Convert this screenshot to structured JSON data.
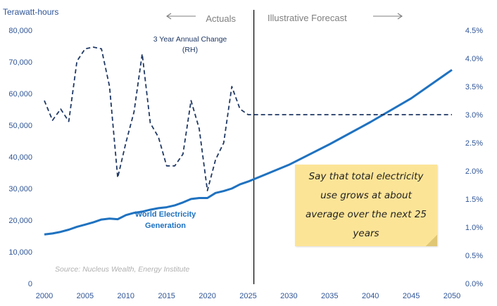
{
  "chart_data": {
    "type": "line",
    "y_axis_title": "Terawatt-hours",
    "ylim_left": [
      0,
      80000
    ],
    "yticks_left": [
      "0",
      "10,000",
      "20,000",
      "30,000",
      "40,000",
      "50,000",
      "60,000",
      "70,000",
      "80,000"
    ],
    "ylim_right": [
      0,
      4.5
    ],
    "yticks_right": [
      "0.0%",
      "0.5%",
      "1.0%",
      "1.5%",
      "2.0%",
      "2.5%",
      "3.0%",
      "3.5%",
      "4.0%",
      "4.5%"
    ],
    "xlim": [
      2000,
      2050
    ],
    "xticks": [
      "2000",
      "2005",
      "2010",
      "2015",
      "2020",
      "2025",
      "2030",
      "2035",
      "2040",
      "2045",
      "2050"
    ],
    "divider_year": 2025.7,
    "actuals_label": "Actuals",
    "forecast_label": "Illustrative Forecast",
    "source": "Source: Nucleus Wealth, Energy Institute",
    "series": [
      {
        "name": "World Electricity Generation",
        "axis": "left",
        "color": "#1f72c0",
        "style": "solid",
        "x": [
          2000,
          2001,
          2002,
          2003,
          2004,
          2005,
          2006,
          2007,
          2008,
          2009,
          2010,
          2011,
          2012,
          2013,
          2014,
          2015,
          2016,
          2017,
          2018,
          2019,
          2020,
          2021,
          2022,
          2023,
          2024,
          2025,
          2030,
          2035,
          2040,
          2045,
          2050
        ],
        "values": [
          15500,
          15800,
          16300,
          17000,
          17900,
          18600,
          19300,
          20200,
          20500,
          20300,
          21600,
          22300,
          22700,
          23300,
          23800,
          24100,
          24700,
          25600,
          26700,
          27000,
          27000,
          28600,
          29200,
          30000,
          31300,
          32200,
          37500,
          44000,
          51000,
          58500,
          67500
        ]
      },
      {
        "name": "3 Year Annual Change (RH)",
        "axis": "right",
        "color": "#1f3864",
        "style": "dashed",
        "x": [
          2000,
          2001,
          2002,
          2003,
          2004,
          2005,
          2006,
          2007,
          2008,
          2009,
          2010,
          2011,
          2012,
          2013,
          2014,
          2015,
          2016,
          2017,
          2018,
          2019,
          2020,
          2021,
          2022,
          2023,
          2024,
          2025,
          2030,
          2035,
          2040,
          2045,
          2050
        ],
        "values": [
          3.25,
          2.9,
          3.1,
          2.88,
          3.95,
          4.17,
          4.2,
          4.17,
          3.5,
          1.88,
          2.5,
          3.05,
          4.08,
          2.85,
          2.6,
          2.09,
          2.09,
          2.3,
          3.25,
          2.75,
          1.65,
          2.2,
          2.5,
          3.5,
          3.1,
          3.0,
          3.0,
          3.0,
          3.0,
          3.0,
          3.0
        ]
      }
    ],
    "annotations": {
      "generation_label_line1": "World Electricity",
      "generation_label_line2": "Generation",
      "change_label_line1": "3 Year Annual Change",
      "change_label_line2": "(RH)"
    },
    "note_text": "Say that total electricity use grows at about average over the next 25 years",
    "colors": {
      "axis_text": "#2f5597",
      "generation": "#1f72c0",
      "change": "#1f3864",
      "note_bg": "#fce497",
      "arrows": "#7f7f7f"
    }
  }
}
